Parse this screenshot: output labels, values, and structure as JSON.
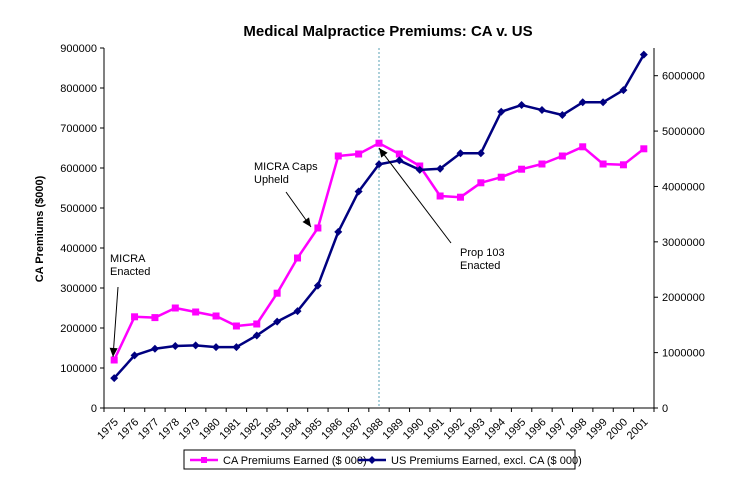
{
  "chart_data": {
    "type": "line",
    "title": "Medical Malpractice Premiums: CA v. US",
    "ylabel": "CA Premiums ($000)",
    "y2label": "",
    "xlabel": "",
    "ylim": [
      0,
      900000
    ],
    "y2lim": [
      0,
      6500000
    ],
    "yticks": [
      "0",
      "100000",
      "200000",
      "300000",
      "400000",
      "500000",
      "600000",
      "700000",
      "800000",
      "900000"
    ],
    "y2ticks": [
      "0",
      "1000000",
      "2000000",
      "3000000",
      "4000000",
      "5000000",
      "6000000"
    ],
    "categories": [
      "1975",
      "1976",
      "1977",
      "1978",
      "1979",
      "1980",
      "1981",
      "1982",
      "1983",
      "1984",
      "1985",
      "1986",
      "1987",
      "1988",
      "1989",
      "1990",
      "1991",
      "1992",
      "1993",
      "1994",
      "1995",
      "1996",
      "1997",
      "1998",
      "1999",
      "2000",
      "2001"
    ],
    "series": [
      {
        "name": "CA Premiums Earned ($ 000)",
        "axis": "left",
        "color": "#ff00ff",
        "marker": "square",
        "values": [
          120000,
          228000,
          226000,
          250000,
          240000,
          230000,
          205000,
          210000,
          287000,
          375000,
          450000,
          630000,
          635000,
          662000,
          635000,
          605000,
          530000,
          527000,
          563000,
          577000,
          597000,
          610000,
          630000,
          653000,
          610000,
          608000,
          648000
        ]
      },
      {
        "name": "US Premiums Earned, excl. CA ($ 000)",
        "axis": "right",
        "color": "#000080",
        "marker": "diamond",
        "values": [
          540000,
          950000,
          1070000,
          1120000,
          1130000,
          1100000,
          1100000,
          1310000,
          1560000,
          1750000,
          2210000,
          3180000,
          3910000,
          4400000,
          4470000,
          4300000,
          4320000,
          4600000,
          4600000,
          5350000,
          5470000,
          5380000,
          5290000,
          5520000,
          5520000,
          5740000,
          6380000
        ]
      }
    ],
    "vertical_line_at": "1988",
    "annotations": [
      {
        "id": "micra-enacted",
        "lines": [
          "MICRA",
          "Enacted"
        ]
      },
      {
        "id": "micra-caps",
        "lines": [
          "MICRA Caps",
          "Upheld"
        ]
      },
      {
        "id": "prop103",
        "lines": [
          "Prop 103",
          "Enacted"
        ]
      }
    ],
    "legend_position": "bottom",
    "grid": false
  }
}
